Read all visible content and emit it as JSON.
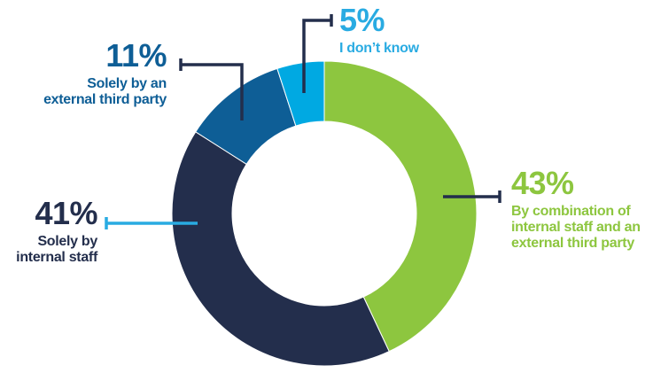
{
  "chart_data": {
    "type": "pie",
    "donut": true,
    "start_angle_deg": 0,
    "direction": "clockwise",
    "title": "",
    "legend_position": "none",
    "segments": [
      {
        "label": "By combination of internal staff and an external third party",
        "value": 43,
        "color": "#8DC63F"
      },
      {
        "label": "Solely by internal staff",
        "value": 41,
        "color": "#232E4C"
      },
      {
        "label": "Solely by an external third party",
        "value": 11,
        "color": "#0E5E96"
      },
      {
        "label": "I don’t know",
        "value": 5,
        "color": "#00A9E2"
      }
    ]
  },
  "colors": {
    "navy": "#232E4C",
    "cyan": "#29ABE2",
    "green": "#8DC63F",
    "blue": "#0E5E96"
  },
  "labels": {
    "dont_know": {
      "pct": "5%",
      "color": "#29ABE2",
      "lines": [
        "I don’t know"
      ]
    },
    "external": {
      "pct": "11%",
      "color": "#0E5E96",
      "lines": [
        "Solely by an",
        "external third party"
      ]
    },
    "internal": {
      "pct": "41%",
      "color": "#232E4C",
      "lines": [
        "Solely by",
        "internal staff"
      ]
    },
    "combination": {
      "pct": "43%",
      "color": "#8DC63F",
      "lines": [
        "By combination of",
        "internal staff and an",
        "external third party"
      ]
    }
  }
}
